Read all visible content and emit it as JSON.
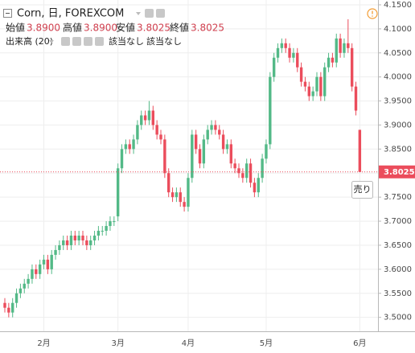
{
  "header": {
    "symbol": "Corn, 日, FOREXCOM",
    "open_label": "始値",
    "open": "3.8900",
    "high_label": "高値",
    "high": "3.8900",
    "low_label": "安値",
    "low": "3.8025",
    "close_label": "終値",
    "close": "3.8025",
    "volume_label": "出来高 (20)",
    "na_1": "該当なし",
    "na_2": "該当なし"
  },
  "sell_button": "売り",
  "chart_data": {
    "type": "candlestick",
    "categories": [
      null,
      null,
      null,
      null,
      null,
      null,
      null,
      null,
      null,
      null,
      "2月",
      null,
      null,
      null,
      null,
      null,
      null,
      null,
      null,
      null,
      null,
      null,
      null,
      null,
      null,
      null,
      null,
      null,
      null,
      "3月",
      null,
      null,
      null,
      null,
      null,
      null,
      null,
      null,
      null,
      null,
      null,
      null,
      null,
      null,
      null,
      null,
      null,
      "4月",
      null,
      null,
      null,
      null,
      null,
      null,
      null,
      null,
      null,
      null,
      null,
      null,
      null,
      null,
      null,
      null,
      null,
      null,
      null,
      "5月",
      null,
      null,
      null,
      null,
      null,
      null,
      null,
      null,
      null,
      null,
      null,
      null,
      null,
      null,
      null,
      null,
      null,
      null,
      null,
      null,
      null,
      null,
      null,
      "6月"
    ],
    "open": [
      3.53,
      3.52,
      3.51,
      3.53,
      3.55,
      3.56,
      3.57,
      3.58,
      3.6,
      3.59,
      3.61,
      3.62,
      3.6,
      3.63,
      3.64,
      3.65,
      3.66,
      3.65,
      3.67,
      3.66,
      3.67,
      3.66,
      3.65,
      3.66,
      3.67,
      3.68,
      3.68,
      3.69,
      3.7,
      3.71,
      3.81,
      3.85,
      3.86,
      3.85,
      3.87,
      3.9,
      3.92,
      3.91,
      3.93,
      3.9,
      3.88,
      3.87,
      3.8,
      3.76,
      3.75,
      3.76,
      3.74,
      3.73,
      3.79,
      3.88,
      3.85,
      3.82,
      3.87,
      3.89,
      3.9,
      3.89,
      3.88,
      3.85,
      3.86,
      3.82,
      3.81,
      3.8,
      3.79,
      3.82,
      3.78,
      3.76,
      3.79,
      3.83,
      3.86,
      4.0,
      4.04,
      4.06,
      4.07,
      4.06,
      4.04,
      4.05,
      4.02,
      3.99,
      3.98,
      3.96,
      3.97,
      4.0,
      3.96,
      4.02,
      4.04,
      4.03,
      4.08,
      4.05,
      4.07,
      4.06,
      3.98,
      3.89
    ],
    "high": [
      3.54,
      3.53,
      3.54,
      3.56,
      3.57,
      3.58,
      3.59,
      3.61,
      3.61,
      3.62,
      3.63,
      3.63,
      3.64,
      3.65,
      3.66,
      3.67,
      3.67,
      3.68,
      3.68,
      3.68,
      3.68,
      3.67,
      3.67,
      3.68,
      3.69,
      3.69,
      3.7,
      3.71,
      3.71,
      3.82,
      3.86,
      3.87,
      3.87,
      3.88,
      3.91,
      3.93,
      3.93,
      3.95,
      3.94,
      3.91,
      3.89,
      3.88,
      3.81,
      3.77,
      3.77,
      3.77,
      3.75,
      3.8,
      3.89,
      3.89,
      3.86,
      3.88,
      3.9,
      3.91,
      3.91,
      3.9,
      3.89,
      3.87,
      3.87,
      3.83,
      3.82,
      3.81,
      3.83,
      3.83,
      3.79,
      3.8,
      3.84,
      3.87,
      4.01,
      4.05,
      4.07,
      4.08,
      4.08,
      4.07,
      4.06,
      4.06,
      4.03,
      4.0,
      3.99,
      3.98,
      4.01,
      4.01,
      4.03,
      4.05,
      4.05,
      4.09,
      4.09,
      4.08,
      4.12,
      4.07,
      3.99,
      3.89
    ],
    "low": [
      3.51,
      3.5,
      3.5,
      3.52,
      3.54,
      3.55,
      3.56,
      3.57,
      3.58,
      3.58,
      3.6,
      3.59,
      3.59,
      3.62,
      3.63,
      3.64,
      3.64,
      3.64,
      3.65,
      3.65,
      3.65,
      3.64,
      3.64,
      3.65,
      3.66,
      3.67,
      3.67,
      3.68,
      3.69,
      3.7,
      3.8,
      3.84,
      3.84,
      3.84,
      3.86,
      3.89,
      3.9,
      3.9,
      3.89,
      3.87,
      3.86,
      3.79,
      3.75,
      3.74,
      3.74,
      3.73,
      3.72,
      3.72,
      3.78,
      3.84,
      3.81,
      3.81,
      3.86,
      3.88,
      3.88,
      3.87,
      3.84,
      3.84,
      3.81,
      3.8,
      3.79,
      3.78,
      3.78,
      3.77,
      3.75,
      3.75,
      3.78,
      3.82,
      3.85,
      3.99,
      4.03,
      4.05,
      4.05,
      4.03,
      4.03,
      4.01,
      3.98,
      3.97,
      3.95,
      3.95,
      3.96,
      3.95,
      3.95,
      4.01,
      4.02,
      4.02,
      4.04,
      4.04,
      4.05,
      3.97,
      3.92,
      3.8025
    ],
    "close": [
      3.52,
      3.51,
      3.53,
      3.55,
      3.56,
      3.57,
      3.58,
      3.6,
      3.59,
      3.61,
      3.62,
      3.6,
      3.63,
      3.64,
      3.65,
      3.66,
      3.65,
      3.67,
      3.66,
      3.67,
      3.66,
      3.65,
      3.66,
      3.67,
      3.68,
      3.68,
      3.69,
      3.7,
      3.7,
      3.81,
      3.85,
      3.86,
      3.85,
      3.87,
      3.9,
      3.92,
      3.91,
      3.93,
      3.9,
      3.88,
      3.87,
      3.8,
      3.76,
      3.75,
      3.76,
      3.74,
      3.73,
      3.79,
      3.88,
      3.85,
      3.82,
      3.87,
      3.89,
      3.9,
      3.89,
      3.88,
      3.85,
      3.86,
      3.82,
      3.81,
      3.8,
      3.79,
      3.82,
      3.78,
      3.76,
      3.79,
      3.83,
      3.86,
      4.0,
      4.04,
      4.06,
      4.07,
      4.06,
      4.04,
      4.05,
      4.02,
      3.99,
      3.98,
      3.96,
      3.97,
      4.0,
      3.96,
      4.02,
      4.04,
      4.03,
      4.08,
      4.05,
      4.07,
      4.06,
      3.98,
      3.93,
      3.8025
    ],
    "up_color": "#53b987",
    "down_color": "#eb4d5c",
    "ylim": [
      3.471,
      4.16
    ],
    "yticks": [
      {
        "value": 3.5,
        "label": "3.5000"
      },
      {
        "value": 3.55,
        "label": "3.5500"
      },
      {
        "value": 3.6,
        "label": "3.6000"
      },
      {
        "value": 3.65,
        "label": "3.6500"
      },
      {
        "value": 3.7,
        "label": "3.7000"
      },
      {
        "value": 3.75,
        "label": "3.7500"
      },
      {
        "value": 3.8,
        "label": "3.8000"
      },
      {
        "value": 3.85,
        "label": "3.8500"
      },
      {
        "value": 3.9,
        "label": "3.9000"
      },
      {
        "value": 3.95,
        "label": "3.9500"
      },
      {
        "value": 4.0,
        "label": "4.0000"
      },
      {
        "value": 4.05,
        "label": "4.0500"
      },
      {
        "value": 4.1,
        "label": "4.1000"
      },
      {
        "value": 4.15,
        "label": "4.1500"
      }
    ],
    "grid": true
  }
}
